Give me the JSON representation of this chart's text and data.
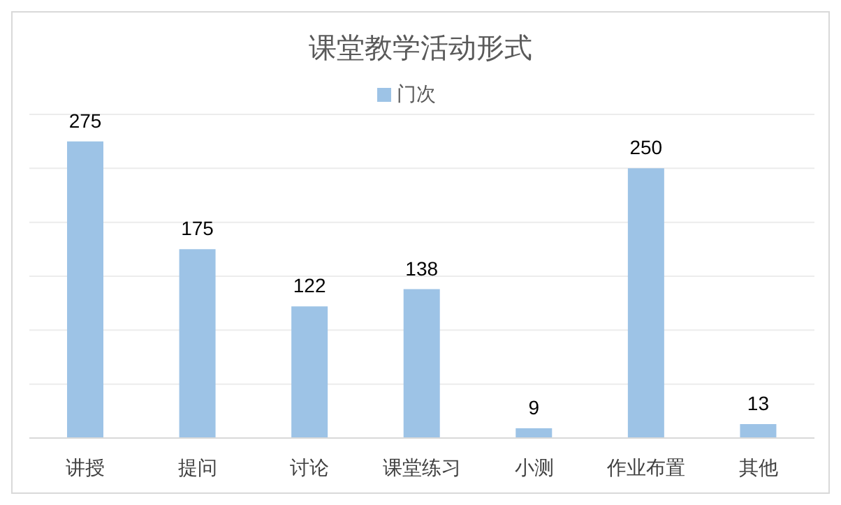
{
  "chart_data": {
    "type": "bar",
    "title": "课堂教学活动形式",
    "categories": [
      "讲授",
      "提问",
      "讨论",
      "课堂练习",
      "小测",
      "作业布置",
      "其他"
    ],
    "series": [
      {
        "name": "门次",
        "color": "#9dc3e6",
        "values": [
          275,
          175,
          122,
          138,
          9,
          250,
          13
        ]
      }
    ],
    "ylim": [
      0,
      300
    ],
    "yticks": [
      {
        "value": 0,
        "label": null
      },
      {
        "value": 50,
        "label": null
      },
      {
        "value": 100,
        "label": null
      },
      {
        "value": 150,
        "label": null
      },
      {
        "value": 200,
        "label": null
      },
      {
        "value": 250,
        "label": null
      },
      {
        "value": 300,
        "label": null
      }
    ],
    "tick_labels": "x",
    "grid": "y",
    "legend": "top",
    "data_labels": true
  }
}
